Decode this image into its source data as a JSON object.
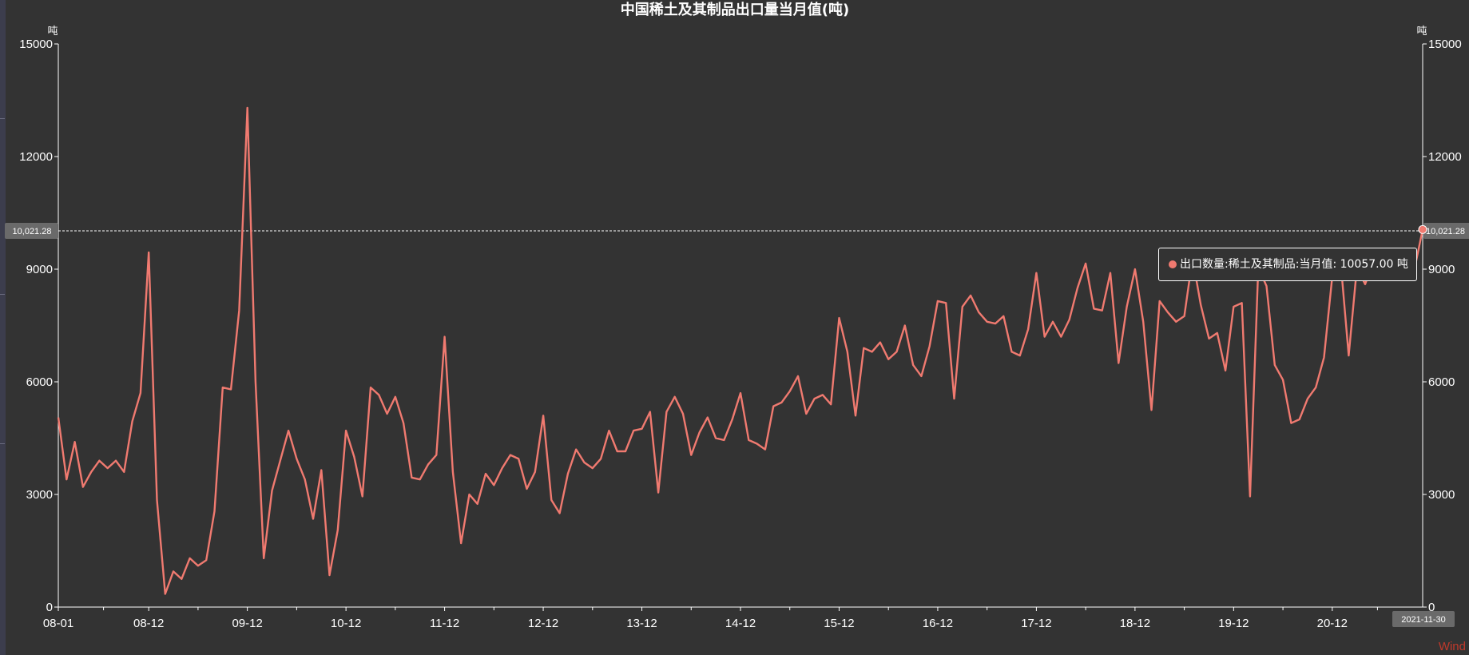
{
  "chart_data": {
    "type": "line",
    "title": "中国稀土及其制品出口量当月值(吨)",
    "y_unit_left": "吨",
    "y_unit_right": "吨",
    "ylim": [
      0,
      15000
    ],
    "yticks": [
      0,
      3000,
      6000,
      9000,
      12000,
      15000
    ],
    "ytick_labels": [
      "0",
      "3000",
      "6000",
      "9000",
      "12000",
      "15000"
    ],
    "x_tick_labels": [
      "08-01",
      "08-12",
      "09-12",
      "10-12",
      "11-12",
      "12-12",
      "13-12",
      "14-12",
      "15-12",
      "16-12",
      "17-12",
      "18-12",
      "19-12",
      "20-12"
    ],
    "x_tick_index": [
      0,
      11,
      23,
      35,
      47,
      59,
      71,
      83,
      95,
      107,
      119,
      131,
      143,
      155
    ],
    "x_end_label": "2021-11-30",
    "reference_line": {
      "value": 10021.28,
      "label": "10,021.28"
    },
    "line_color": "#f07a70",
    "grid": false,
    "series": [
      {
        "values": [
          5050,
          3400,
          4400,
          3200,
          3600,
          3900,
          3700,
          3900,
          3600,
          4950,
          5700,
          9450,
          2850,
          350,
          950,
          750,
          1300,
          1100,
          1250,
          2550,
          5850,
          5800,
          7900,
          13300,
          6000,
          1300,
          3100,
          3900,
          4700,
          3950,
          3400,
          2350,
          3650,
          850,
          2050,
          4700,
          4000,
          2950,
          5850,
          5650,
          5150,
          5600,
          4900,
          3450,
          3400,
          3800,
          4050,
          7200,
          3600,
          1700,
          3000,
          2750,
          3550,
          3250,
          3700,
          4050,
          3950,
          3150,
          3600,
          5100,
          2850,
          2500,
          3550,
          4200,
          3850,
          3700,
          3950,
          4700,
          4150,
          4150,
          4700,
          4750,
          5200,
          3050,
          5200,
          5600,
          5150,
          4050,
          4650,
          5050,
          4500,
          4450,
          5000,
          5700,
          4450,
          4350,
          4200,
          5350,
          5450,
          5750,
          6150,
          5150,
          5550,
          5650,
          5400,
          7700,
          6800,
          5100,
          6900,
          6800,
          7050,
          6600,
          6800,
          7500,
          6450,
          6150,
          6950,
          8150,
          8100,
          5550,
          8000,
          8300,
          7850,
          7600,
          7550,
          7750,
          6800,
          6700,
          7400,
          8900,
          7200,
          7600,
          7200,
          7650,
          8500,
          9150,
          7950,
          7900,
          8900,
          6500,
          8000,
          9000,
          7600,
          5250,
          8150,
          7850,
          7600,
          7750,
          9300,
          8050,
          7150,
          7300,
          6300,
          8000,
          8100,
          2950,
          9050,
          8550,
          6450,
          6050,
          4900,
          5000,
          5550,
          5850,
          6650,
          8800,
          9250,
          6700,
          9050,
          8600,
          9200,
          9100,
          9200,
          9250,
          9300,
          9000,
          10057
        ]
      }
    ],
    "tooltip": {
      "label": "出口数量:稀土及其制品:当月值",
      "value": "10057.00",
      "unit": "吨"
    }
  },
  "watermark": "Wind"
}
